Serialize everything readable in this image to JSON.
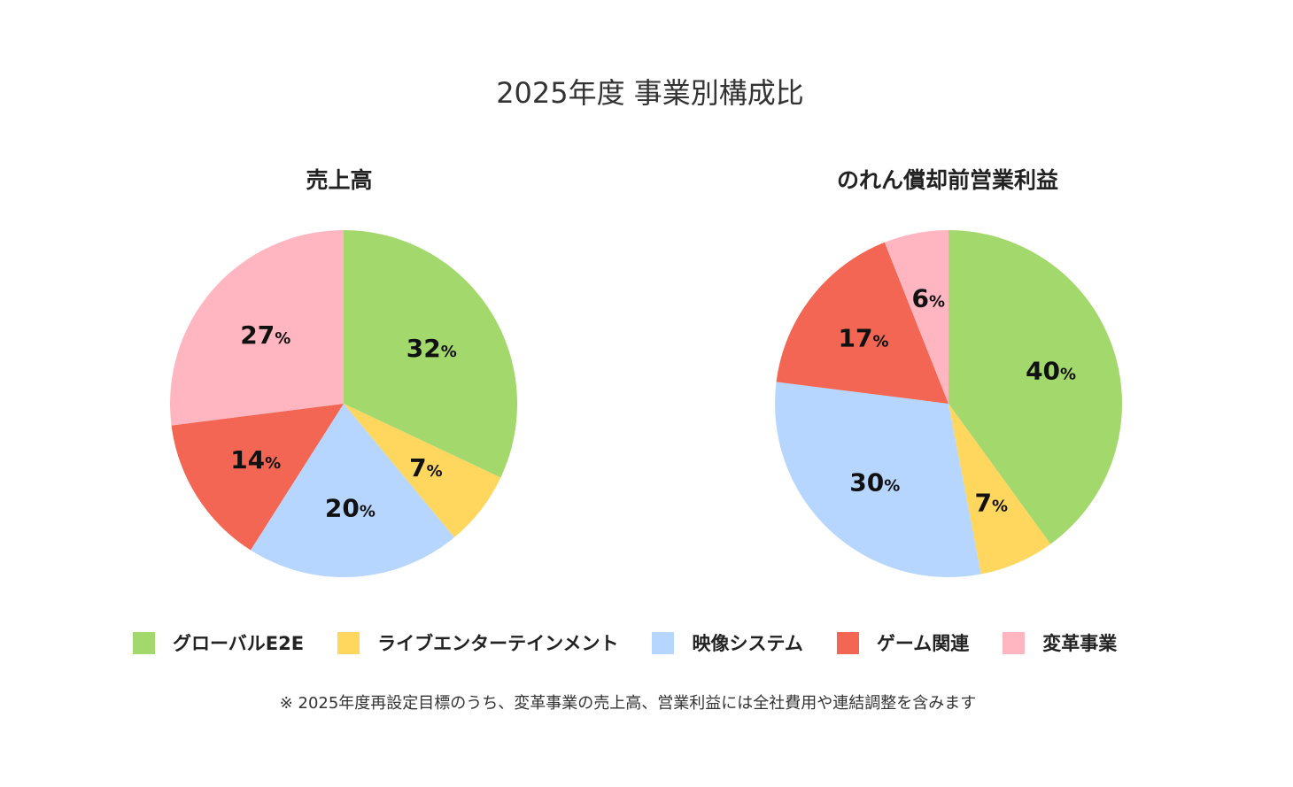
{
  "title": "2025年度 事業別構成比",
  "colors": {
    "グローバルE2E": "#a3d86c",
    "ライブエンターテインメント": "#ffd75e",
    "映像システム": "#b7d6ff",
    "ゲーム関連": "#f26653",
    "変革事業": "#ffb6c0"
  },
  "legend": [
    {
      "label": "グローバルE2E",
      "color": "#a3d86c"
    },
    {
      "label": "ライブエンターテインメント",
      "color": "#ffd75e"
    },
    {
      "label": "映像システム",
      "color": "#b7d6ff"
    },
    {
      "label": "ゲーム関連",
      "color": "#f26653"
    },
    {
      "label": "変革事業",
      "color": "#ffb6c0"
    }
  ],
  "chart_data": [
    {
      "type": "pie",
      "title": "売上高",
      "categories": [
        "グローバルE2E",
        "ライブエンターテインメント",
        "映像システム",
        "ゲーム関連",
        "変革事業"
      ],
      "values": [
        32,
        7,
        20,
        14,
        27
      ],
      "unit": "%"
    },
    {
      "type": "pie",
      "title": "のれん償却前営業利益",
      "categories": [
        "グローバルE2E",
        "ライブエンターテインメント",
        "映像システム",
        "ゲーム関連",
        "変革事業"
      ],
      "values": [
        40,
        7,
        30,
        17,
        6
      ],
      "unit": "%"
    }
  ],
  "footnote": "※ 2025年度再設定目標のうち、変革事業の売上高、営業利益には全社費用や連結調整を含みます"
}
